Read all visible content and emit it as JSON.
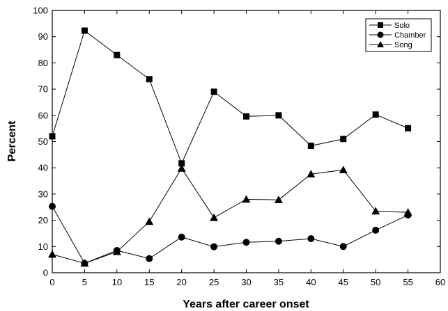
{
  "chart_data": {
    "type": "line",
    "xlabel": "Years after career onset",
    "ylabel": "Percent",
    "xlim": [
      0,
      60
    ],
    "ylim": [
      0,
      100
    ],
    "xticks": [
      0,
      5,
      10,
      15,
      20,
      25,
      30,
      35,
      40,
      45,
      50,
      55,
      60
    ],
    "yticks": [
      0,
      10,
      20,
      30,
      40,
      50,
      60,
      70,
      80,
      90,
      100
    ],
    "grid": false,
    "legend_position": "top-right",
    "x": [
      0,
      5,
      10,
      15,
      20,
      25,
      30,
      35,
      40,
      45,
      50,
      55
    ],
    "series": [
      {
        "name": "Solo",
        "marker": "square",
        "color": "#000000",
        "values": [
          52,
          92.3,
          83,
          73.8,
          41.7,
          69,
          59.6,
          60,
          48.4,
          51,
          60.3,
          55.1
        ]
      },
      {
        "name": "Chamber",
        "marker": "circle",
        "color": "#000000",
        "values": [
          25.3,
          3.6,
          8.5,
          5.4,
          13.6,
          9.9,
          11.6,
          12,
          13,
          10,
          16.2,
          22
        ]
      },
      {
        "name": "Song",
        "marker": "triangle",
        "color": "#000000",
        "values": [
          7,
          3.6,
          8,
          19.5,
          39.8,
          21,
          28,
          27.8,
          37.6,
          39.2,
          23.5,
          23
        ]
      }
    ]
  }
}
